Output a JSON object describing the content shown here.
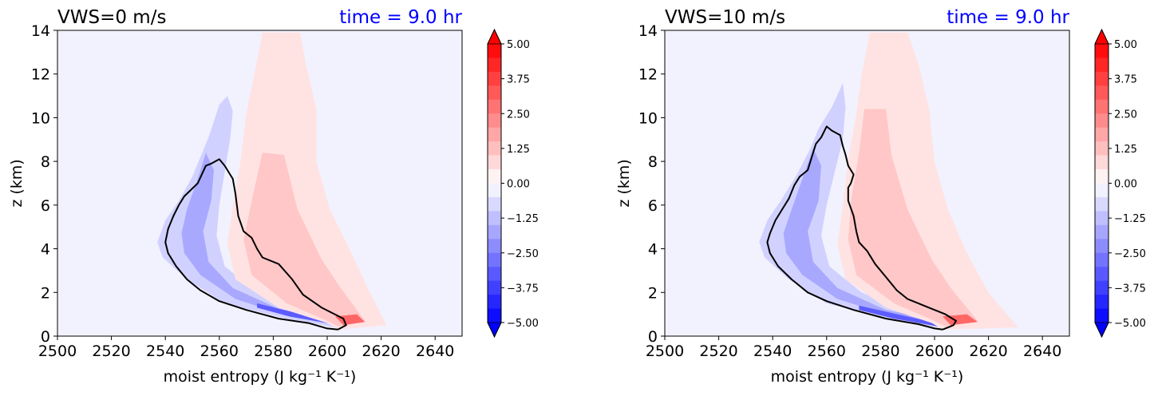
{
  "colors": {
    "background": "#f2f2ff",
    "blue_extreme": "#0000ff",
    "red_extreme": "#ff0000",
    "contour_line": "#000000",
    "time_text": "#0000ff"
  },
  "chart_data": [
    {
      "type": "contourf",
      "title": "VWS=0 m/s",
      "time_label": "time = 9.0 hr",
      "xlabel": "moist entropy (J kg⁻¹ K⁻¹)",
      "ylabel": "z (km)",
      "xlim": [
        2500,
        2650
      ],
      "ylim": [
        0,
        14
      ],
      "xticks": [
        "2500",
        "2520",
        "2540",
        "2560",
        "2580",
        "2600",
        "2620",
        "2640"
      ],
      "yticks": [
        "0",
        "2",
        "4",
        "6",
        "8",
        "10",
        "12",
        "14"
      ],
      "colorbar": {
        "range": [
          -5.0,
          5.0
        ],
        "tick_labels": [
          "5.00",
          "3.75",
          "2.50",
          "1.25",
          "0.00",
          "−1.25",
          "−2.50",
          "−3.75",
          "−5.00"
        ],
        "extend": "both"
      },
      "blue_band": [
        [
          2607,
          0.3
        ],
        [
          2585,
          0.8
        ],
        [
          2562,
          1.5
        ],
        [
          2548,
          2.6
        ],
        [
          2539,
          3.6
        ],
        [
          2537,
          4.3
        ],
        [
          2540,
          5.3
        ],
        [
          2545,
          6.2
        ],
        [
          2550,
          7.3
        ],
        [
          2554,
          8.5
        ],
        [
          2556,
          9.1
        ],
        [
          2560,
          10.6
        ],
        [
          2563,
          11.0
        ],
        [
          2565,
          10.3
        ],
        [
          2564,
          9.0
        ],
        [
          2562,
          7.5
        ],
        [
          2560,
          6.0
        ],
        [
          2559,
          4.6
        ],
        [
          2562,
          3.2
        ],
        [
          2574,
          2.0
        ],
        [
          2592,
          1.1
        ],
        [
          2607,
          0.55
        ]
      ],
      "blue_core": [
        [
          2605,
          0.5
        ],
        [
          2586,
          0.9
        ],
        [
          2566,
          1.7
        ],
        [
          2553,
          2.8
        ],
        [
          2547,
          3.8
        ],
        [
          2546,
          4.7
        ],
        [
          2548,
          5.8
        ],
        [
          2552,
          7.2
        ],
        [
          2555,
          8.4
        ],
        [
          2558,
          7.6
        ],
        [
          2557,
          6.2
        ],
        [
          2554,
          4.8
        ],
        [
          2556,
          3.4
        ],
        [
          2565,
          2.2
        ],
        [
          2583,
          1.2
        ],
        [
          2604,
          0.7
        ]
      ],
      "blue_deep": [
        [
          2602,
          0.55
        ],
        [
          2586,
          0.9
        ],
        [
          2574,
          1.3
        ],
        [
          2574,
          1.5
        ],
        [
          2589,
          1.05
        ],
        [
          2602,
          0.7
        ]
      ],
      "red_band": [
        [
          2604,
          0.3
        ],
        [
          2622,
          0.5
        ],
        [
          2615,
          2.2
        ],
        [
          2609,
          3.8
        ],
        [
          2601,
          5.8
        ],
        [
          2596,
          8.0
        ],
        [
          2596,
          10.4
        ],
        [
          2592,
          12.5
        ],
        [
          2590,
          13.9
        ],
        [
          2576,
          13.9
        ],
        [
          2573,
          12.0
        ],
        [
          2570,
          10.2
        ],
        [
          2568,
          8.1
        ],
        [
          2565,
          6.0
        ],
        [
          2563,
          4.2
        ],
        [
          2566,
          2.6
        ],
        [
          2582,
          1.3
        ],
        [
          2600,
          0.6
        ]
      ],
      "red_core": [
        [
          2604,
          0.45
        ],
        [
          2614,
          0.7
        ],
        [
          2605,
          2.2
        ],
        [
          2598,
          3.5
        ],
        [
          2589,
          5.8
        ],
        [
          2584,
          8.3
        ],
        [
          2576,
          8.4
        ],
        [
          2572,
          6.2
        ],
        [
          2569,
          4.4
        ],
        [
          2572,
          2.8
        ],
        [
          2585,
          1.5
        ],
        [
          2600,
          0.7
        ]
      ],
      "red_hot": [
        [
          2606,
          0.5
        ],
        [
          2614,
          0.65
        ],
        [
          2611,
          1.0
        ],
        [
          2603,
          0.9
        ]
      ],
      "line": [
        [
          2604,
          0.3
        ],
        [
          2607,
          0.5
        ],
        [
          2606,
          0.8
        ],
        [
          2598,
          1.3
        ],
        [
          2591,
          1.9
        ],
        [
          2587,
          2.6
        ],
        [
          2582,
          3.3
        ],
        [
          2576,
          3.6
        ],
        [
          2574,
          4.0
        ],
        [
          2572,
          4.5
        ],
        [
          2569,
          4.8
        ],
        [
          2567,
          5.5
        ],
        [
          2566,
          6.5
        ],
        [
          2565,
          7.2
        ],
        [
          2562,
          7.8
        ],
        [
          2560,
          8.1
        ],
        [
          2557,
          7.9
        ],
        [
          2555,
          7.8
        ],
        [
          2552,
          7.0
        ],
        [
          2547,
          6.4
        ],
        [
          2545,
          6.0
        ],
        [
          2543,
          5.5
        ],
        [
          2541,
          4.9
        ],
        [
          2540,
          4.3
        ],
        [
          2541,
          3.8
        ],
        [
          2544,
          3.2
        ],
        [
          2548,
          2.6
        ],
        [
          2553,
          2.1
        ],
        [
          2560,
          1.6
        ],
        [
          2570,
          1.2
        ],
        [
          2582,
          0.8
        ],
        [
          2593,
          0.6
        ],
        [
          2600,
          0.35
        ],
        [
          2604,
          0.3
        ]
      ]
    },
    {
      "type": "contourf",
      "title": "VWS=10 m/s",
      "time_label": "time = 9.0 hr",
      "xlabel": "moist entropy (J kg⁻¹ K⁻¹)",
      "ylabel": "z (km)",
      "xlim": [
        2500,
        2650
      ],
      "ylim": [
        0,
        14
      ],
      "xticks": [
        "2500",
        "2520",
        "2540",
        "2560",
        "2580",
        "2600",
        "2620",
        "2640"
      ],
      "yticks": [
        "0",
        "2",
        "4",
        "6",
        "8",
        "10",
        "12",
        "14"
      ],
      "colorbar": {
        "range": [
          -5.0,
          5.0
        ],
        "tick_labels": [
          "5.00",
          "3.75",
          "2.50",
          "1.25",
          "0.00",
          "−1.25",
          "−2.50",
          "−3.75",
          "−5.00"
        ],
        "extend": "both"
      },
      "blue_band": [
        [
          2606,
          0.3
        ],
        [
          2583,
          0.8
        ],
        [
          2560,
          1.5
        ],
        [
          2546,
          2.6
        ],
        [
          2537,
          3.6
        ],
        [
          2535,
          4.3
        ],
        [
          2538,
          5.3
        ],
        [
          2543,
          6.2
        ],
        [
          2549,
          7.4
        ],
        [
          2554,
          8.6
        ],
        [
          2557,
          9.5
        ],
        [
          2562,
          10.5
        ],
        [
          2566,
          11.6
        ],
        [
          2567,
          10.5
        ],
        [
          2566,
          9.0
        ],
        [
          2563,
          7.5
        ],
        [
          2560,
          6.0
        ],
        [
          2558,
          4.6
        ],
        [
          2561,
          3.2
        ],
        [
          2573,
          2.0
        ],
        [
          2591,
          1.1
        ],
        [
          2606,
          0.55
        ]
      ],
      "blue_core": [
        [
          2604,
          0.5
        ],
        [
          2585,
          0.9
        ],
        [
          2564,
          1.7
        ],
        [
          2551,
          2.8
        ],
        [
          2545,
          3.8
        ],
        [
          2544,
          4.7
        ],
        [
          2547,
          5.8
        ],
        [
          2551,
          7.2
        ],
        [
          2555,
          8.6
        ],
        [
          2558,
          7.8
        ],
        [
          2557,
          6.2
        ],
        [
          2553,
          4.8
        ],
        [
          2555,
          3.4
        ],
        [
          2564,
          2.2
        ],
        [
          2582,
          1.2
        ],
        [
          2603,
          0.7
        ]
      ],
      "blue_deep": [
        [
          2601,
          0.45
        ],
        [
          2585,
          0.8
        ],
        [
          2572,
          1.2
        ],
        [
          2572,
          1.4
        ],
        [
          2588,
          0.95
        ],
        [
          2601,
          0.6
        ]
      ],
      "red_band": [
        [
          2603,
          0.3
        ],
        [
          2631,
          0.4
        ],
        [
          2620,
          2.0
        ],
        [
          2612,
          3.8
        ],
        [
          2605,
          5.8
        ],
        [
          2600,
          8.0
        ],
        [
          2598,
          10.4
        ],
        [
          2594,
          12.5
        ],
        [
          2590,
          13.9
        ],
        [
          2576,
          13.9
        ],
        [
          2573,
          12.0
        ],
        [
          2571,
          10.2
        ],
        [
          2568,
          8.1
        ],
        [
          2566,
          6.0
        ],
        [
          2564,
          4.2
        ],
        [
          2567,
          2.6
        ],
        [
          2582,
          1.3
        ],
        [
          2599,
          0.6
        ]
      ],
      "red_core": [
        [
          2604,
          0.45
        ],
        [
          2616,
          0.7
        ],
        [
          2606,
          2.2
        ],
        [
          2599,
          3.5
        ],
        [
          2590,
          5.8
        ],
        [
          2584,
          8.3
        ],
        [
          2582,
          10.4
        ],
        [
          2574,
          10.4
        ],
        [
          2572,
          8.4
        ],
        [
          2569,
          6.2
        ],
        [
          2568,
          4.4
        ],
        [
          2571,
          2.8
        ],
        [
          2585,
          1.5
        ],
        [
          2600,
          0.7
        ]
      ],
      "red_hot": [
        [
          2606,
          0.5
        ],
        [
          2616,
          0.65
        ],
        [
          2612,
          1.0
        ],
        [
          2603,
          0.9
        ]
      ],
      "line": [
        [
          2603,
          0.3
        ],
        [
          2607,
          0.5
        ],
        [
          2608,
          0.7
        ],
        [
          2604,
          1.0
        ],
        [
          2598,
          1.3
        ],
        [
          2590,
          1.7
        ],
        [
          2586,
          2.1
        ],
        [
          2582,
          2.7
        ],
        [
          2578,
          3.3
        ],
        [
          2575,
          3.9
        ],
        [
          2572,
          4.3
        ],
        [
          2571,
          4.8
        ],
        [
          2570,
          5.5
        ],
        [
          2568,
          6.2
        ],
        [
          2568,
          6.8
        ],
        [
          2569,
          7.0
        ],
        [
          2570,
          7.4
        ],
        [
          2568,
          7.8
        ],
        [
          2567,
          8.3
        ],
        [
          2566,
          8.7
        ],
        [
          2565,
          9.2
        ],
        [
          2562,
          9.4
        ],
        [
          2560,
          9.6
        ],
        [
          2558,
          9.1
        ],
        [
          2556,
          8.8
        ],
        [
          2555,
          8.4
        ],
        [
          2553,
          7.6
        ],
        [
          2550,
          7.3
        ],
        [
          2548,
          6.9
        ],
        [
          2546,
          6.3
        ],
        [
          2543,
          5.7
        ],
        [
          2541,
          5.3
        ],
        [
          2539,
          4.7
        ],
        [
          2538,
          4.3
        ],
        [
          2539,
          3.8
        ],
        [
          2542,
          3.2
        ],
        [
          2547,
          2.6
        ],
        [
          2553,
          2.0
        ],
        [
          2560,
          1.6
        ],
        [
          2570,
          1.2
        ],
        [
          2582,
          0.8
        ],
        [
          2594,
          0.55
        ],
        [
          2600,
          0.35
        ],
        [
          2603,
          0.3
        ]
      ]
    }
  ]
}
